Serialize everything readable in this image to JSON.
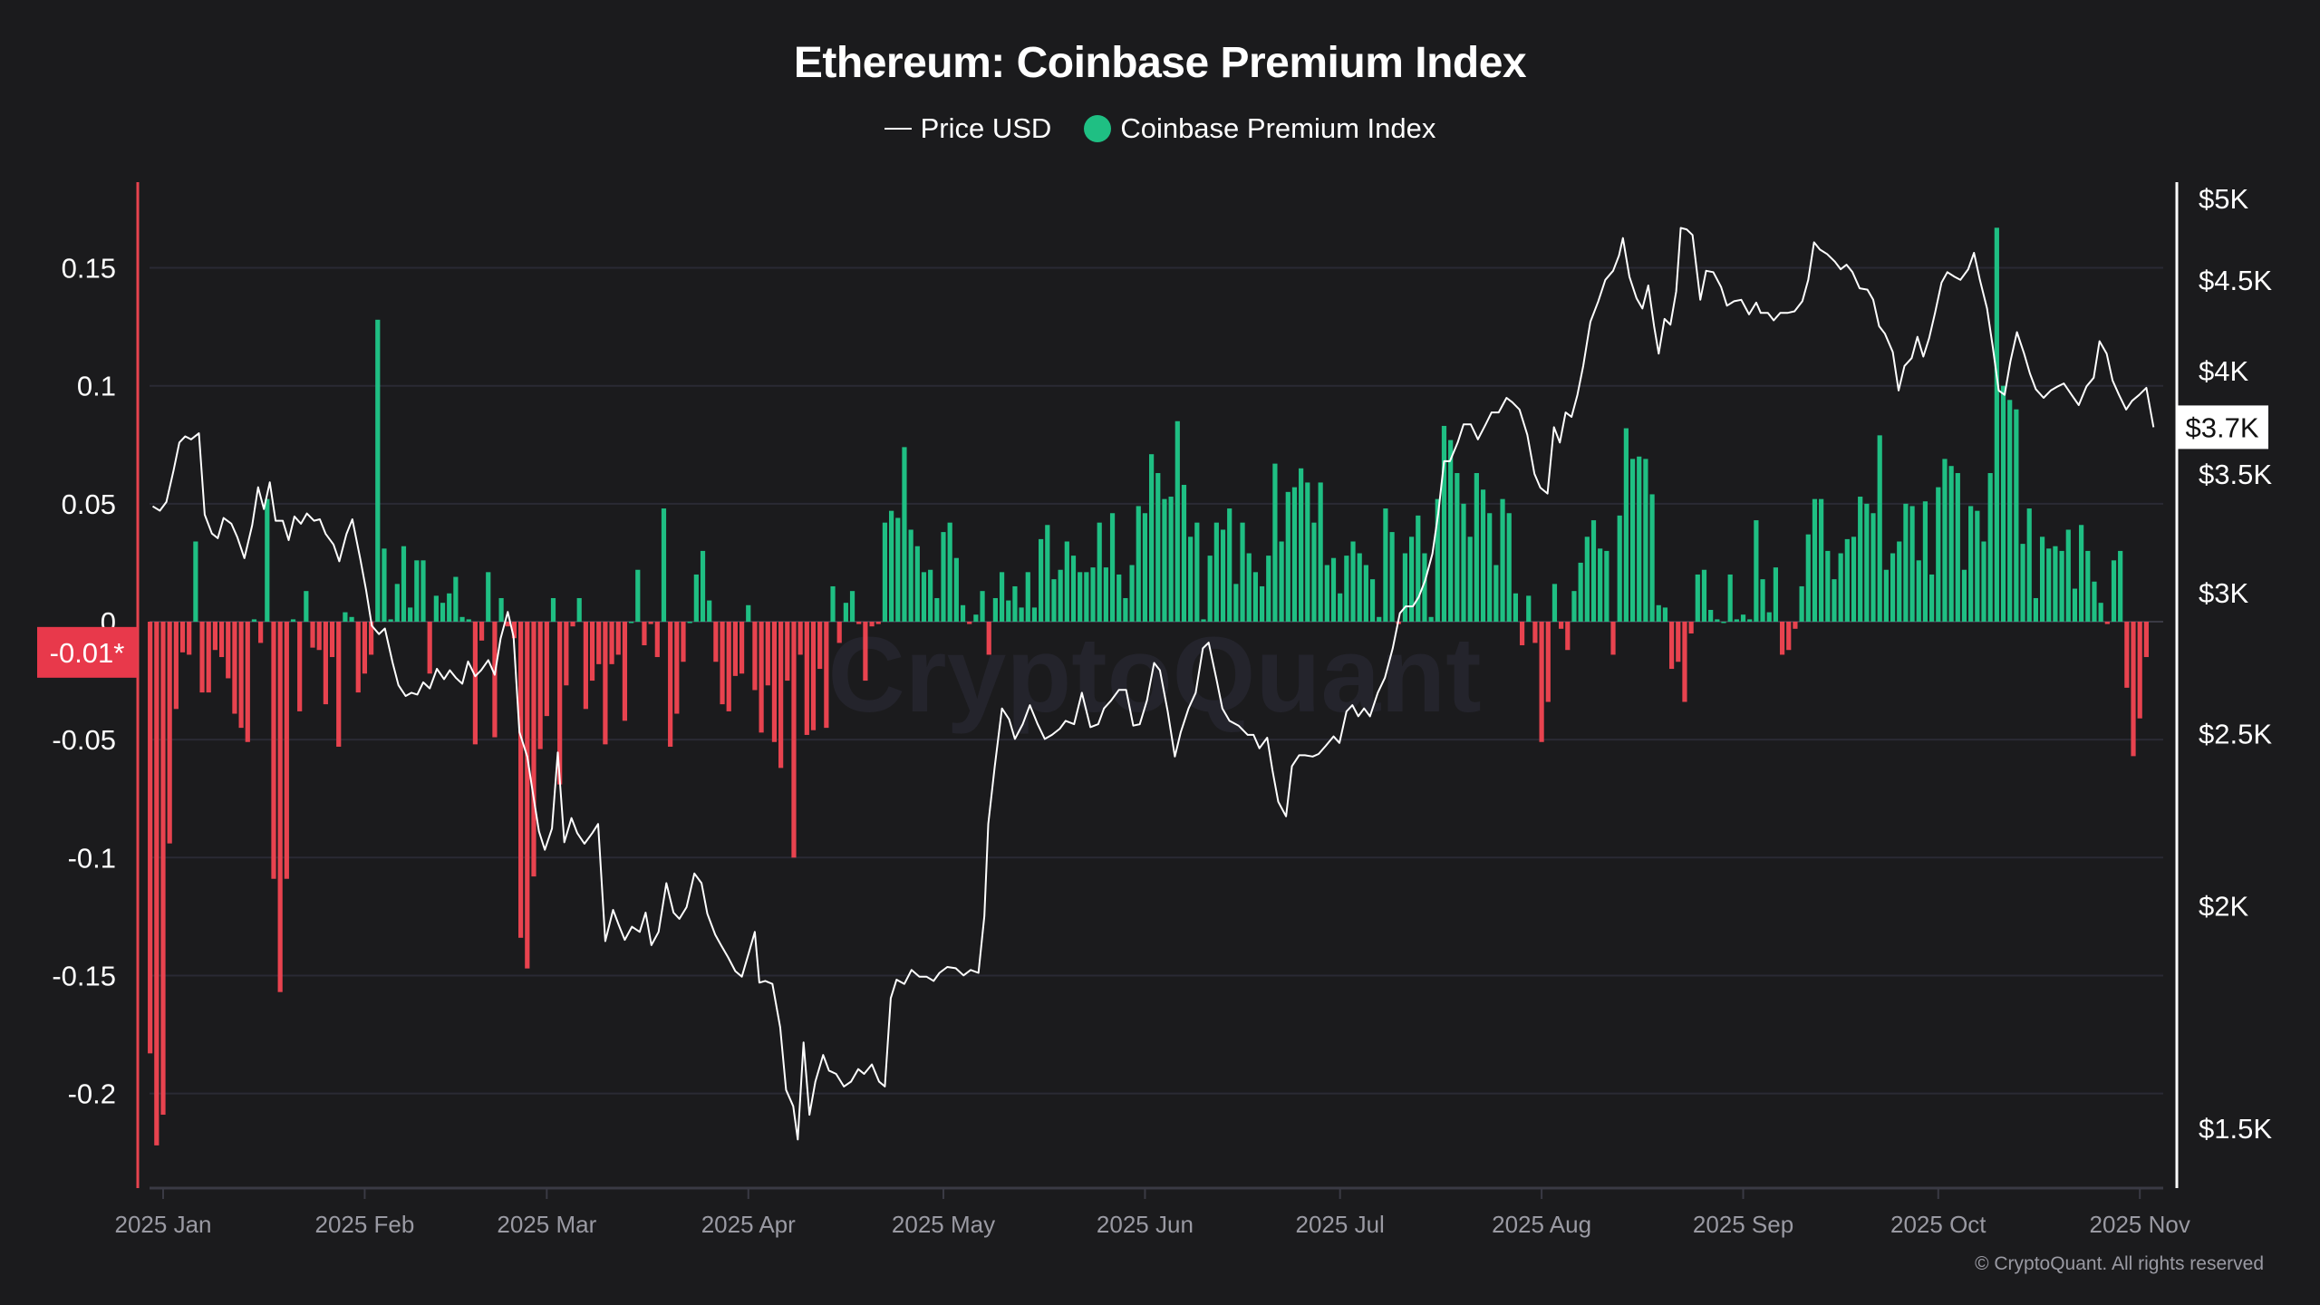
{
  "title": "Ethereum: Coinbase Premium Index",
  "legend": [
    {
      "label": "Price USD",
      "type": "line",
      "color": "#ffffff"
    },
    {
      "label": "Coinbase Premium Index",
      "type": "dot",
      "color": "#1fbf83"
    }
  ],
  "colors": {
    "background": "#1b1b1d",
    "positive": "#1fbf83",
    "negative": "#e8434f",
    "grid": "#2a2a34",
    "left_axis": "#e8434f"
  },
  "watermark": "CryptoQuant",
  "copyright": "© CryptoQuant. All rights reserved",
  "chart_data": {
    "type": "bar+line",
    "title": "Ethereum: Coinbase Premium Index",
    "left_axis": {
      "ticks": [
        0.15,
        0.1,
        0.05,
        0,
        -0.05,
        -0.1,
        -0.15,
        -0.2
      ],
      "tick_labels": [
        "0.15",
        "0.1",
        "0.05",
        "0",
        "-0.05",
        "-0.1",
        "-0.15",
        "-0.2"
      ],
      "range": [
        -0.24,
        0.186
      ]
    },
    "right_axis": {
      "scale": "log",
      "ticks": [
        5000,
        4500,
        4000,
        3500,
        3000,
        2500,
        2000,
        1500
      ],
      "tick_labels": [
        "$5K",
        "$4.5K",
        "$4K",
        "$3.5K",
        "$3K",
        "$2.5K",
        "$2K",
        "$1.5K"
      ]
    },
    "x_axis": {
      "ticks": [
        {
          "label": "2025 Jan",
          "day": 0
        },
        {
          "label": "2025 Feb",
          "day": 31
        },
        {
          "label": "2025 Mar",
          "day": 59
        },
        {
          "label": "2025 Apr",
          "day": 90
        },
        {
          "label": "2025 May",
          "day": 120
        },
        {
          "label": "2025 Jun",
          "day": 151
        },
        {
          "label": "2025 Jul",
          "day": 181
        },
        {
          "label": "2025 Aug",
          "day": 212
        },
        {
          "label": "2025 Sep",
          "day": 243
        },
        {
          "label": "2025 Oct",
          "day": 273
        },
        {
          "label": "2025 Nov",
          "day": 304
        }
      ]
    },
    "last_premium_label": "-0.01*",
    "last_premium_value": -0.013,
    "last_price_label": "$3.7K",
    "last_price_value": 3718,
    "premium_start_day": -2,
    "premium": [
      -0.183,
      -0.222,
      -0.209,
      -0.094,
      -0.037,
      -0.013,
      -0.014,
      0.034,
      -0.03,
      -0.03,
      -0.012,
      -0.015,
      -0.024,
      -0.039,
      -0.045,
      -0.051,
      0.001,
      -0.009,
      0.052,
      -0.109,
      -0.157,
      -0.109,
      0.001,
      -0.038,
      0.013,
      -0.011,
      -0.012,
      -0.035,
      -0.015,
      -0.053,
      0.004,
      0.002,
      -0.03,
      -0.022,
      -0.014,
      0.128,
      0.031,
      0.001,
      0.016,
      0.032,
      0.006,
      0.026,
      0.026,
      -0.022,
      0.011,
      0.008,
      0.012,
      0.019,
      0.002,
      0.001,
      -0.052,
      -0.008,
      0.021,
      -0.049,
      0.01,
      -0.002,
      -0.007,
      -0.134,
      -0.147,
      -0.108,
      -0.054,
      -0.04,
      0.01,
      -0.069,
      -0.027,
      -0.002,
      0.01,
      -0.037,
      -0.025,
      -0.018,
      -0.052,
      -0.018,
      -0.014,
      -0.042,
      0,
      0.022,
      -0.01,
      -0.001,
      -0.015,
      0.048,
      -0.053,
      -0.039,
      -0.017,
      0,
      0.02,
      0.03,
      0.009,
      -0.017,
      -0.035,
      -0.038,
      -0.023,
      -0.022,
      0.007,
      -0.029,
      -0.047,
      -0.027,
      -0.051,
      -0.062,
      -0.025,
      -0.1,
      -0.014,
      -0.048,
      -0.046,
      -0.02,
      -0.045,
      0.015,
      -0.009,
      0.008,
      0.013,
      -0.001,
      -0.025,
      -0.002,
      -0.001,
      0.042,
      0.047,
      0.044,
      0.074,
      0.039,
      0.032,
      0.021,
      0.022,
      0.01,
      0.038,
      0.042,
      0.027,
      0.007,
      -0.001,
      0.003,
      0.013,
      -0.014,
      0.01,
      0.021,
      0.009,
      0.015,
      0.006,
      0.021,
      0.006,
      0.035,
      0.041,
      0.018,
      0.022,
      0.034,
      0.028,
      0.021,
      0.021,
      0.023,
      0.042,
      0.023,
      0.046,
      0.02,
      0.01,
      0.024,
      0.049,
      0.046,
      0.071,
      0.063,
      0.052,
      0.053,
      0.085,
      0.058,
      0.036,
      0.042,
      0.001,
      0.028,
      0.042,
      0.039,
      0.048,
      0.016,
      0.042,
      0.029,
      0.021,
      0.015,
      0.028,
      0.067,
      0.034,
      0.055,
      0.057,
      0.065,
      0.059,
      0.042,
      0.059,
      0.024,
      0.027,
      0.012,
      0.028,
      0.034,
      0.029,
      0.024,
      0.018,
      0.002,
      0.048,
      0.038,
      -0.001,
      0.029,
      0.036,
      0.045,
      0.029,
      0.002,
      0.052,
      0.083,
      0.077,
      0.063,
      0.05,
      0.036,
      0.063,
      0.056,
      0.046,
      0.024,
      0.052,
      0.046,
      0.012,
      -0.01,
      0.011,
      -0.009,
      -0.051,
      -0.034,
      0.016,
      -0.003,
      -0.012,
      0.013,
      0.025,
      0.036,
      0.043,
      0.031,
      0.03,
      -0.014,
      0.045,
      0.082,
      0.069,
      0.07,
      0.069,
      0.054,
      0.007,
      0.006,
      -0.02,
      -0.017,
      -0.034,
      -0.005,
      0.02,
      0.022,
      0.005,
      0.001,
      0,
      0.02,
      0.001,
      0.003,
      0.001,
      0.043,
      0.018,
      0.004,
      0.023,
      -0.014,
      -0.012,
      -0.003,
      0.015,
      0.037,
      0.052,
      0.052,
      0.03,
      0.018,
      0.029,
      0.035,
      0.036,
      0.053,
      0.05,
      0.046,
      0.079,
      0.022,
      0.029,
      0.034,
      0.05,
      0.049,
      0.026,
      0.051,
      0.02,
      0.057,
      0.069,
      0.066,
      0.063,
      0.022,
      0.049,
      0.047,
      0.034,
      0.063,
      0.167,
      0.1,
      0.094,
      0.09,
      0.033,
      0.048,
      0.01,
      0.036,
      0.031,
      0.032,
      0.03,
      0.039,
      0.014,
      0.041,
      0.03,
      0.017,
      0.008,
      -0.001,
      0.026,
      0.03,
      -0.028,
      -0.057,
      -0.041,
      -0.015
    ],
    "price": [
      [
        -1.6,
        3356
      ],
      [
        -0.5,
        3337
      ],
      [
        0.5,
        3375
      ],
      [
        1.6,
        3515
      ],
      [
        2.5,
        3645
      ],
      [
        3.4,
        3674
      ],
      [
        4.3,
        3660
      ],
      [
        5.5,
        3689
      ],
      [
        6.4,
        3320
      ],
      [
        7.5,
        3240
      ],
      [
        8.4,
        3220
      ],
      [
        9.3,
        3306
      ],
      [
        10.5,
        3281
      ],
      [
        11.4,
        3225
      ],
      [
        12.5,
        3138
      ],
      [
        13.7,
        3275
      ],
      [
        14.6,
        3440
      ],
      [
        15.5,
        3344
      ],
      [
        16.4,
        3462
      ],
      [
        17.3,
        3294
      ],
      [
        18.4,
        3294
      ],
      [
        19.3,
        3212
      ],
      [
        20.2,
        3312
      ],
      [
        21.2,
        3281
      ],
      [
        22.1,
        3325
      ],
      [
        23.2,
        3294
      ],
      [
        24.1,
        3300
      ],
      [
        25.0,
        3238
      ],
      [
        26.2,
        3194
      ],
      [
        27.1,
        3125
      ],
      [
        28.2,
        3238
      ],
      [
        29.1,
        3300
      ],
      [
        30.3,
        3138
      ],
      [
        31.2,
        3012
      ],
      [
        32.1,
        2875
      ],
      [
        33.2,
        2844
      ],
      [
        34.1,
        2865
      ],
      [
        35.3,
        2740
      ],
      [
        36.2,
        2662
      ],
      [
        37.3,
        2625
      ],
      [
        38.2,
        2636
      ],
      [
        39.1,
        2630
      ],
      [
        40.0,
        2672
      ],
      [
        41.0,
        2651
      ],
      [
        42.1,
        2719
      ],
      [
        43.2,
        2683
      ],
      [
        44.1,
        2714
      ],
      [
        45.0,
        2688
      ],
      [
        46.0,
        2667
      ],
      [
        46.9,
        2745
      ],
      [
        48.0,
        2693
      ],
      [
        48.9,
        2714
      ],
      [
        50.0,
        2750
      ],
      [
        51.0,
        2698
      ],
      [
        51.9,
        2828
      ],
      [
        53.0,
        2927
      ],
      [
        53.9,
        2834
      ],
      [
        54.8,
        2505
      ],
      [
        56.0,
        2427
      ],
      [
        56.9,
        2310
      ],
      [
        57.8,
        2203
      ],
      [
        58.7,
        2151
      ],
      [
        59.8,
        2211
      ],
      [
        60.7,
        2440
      ],
      [
        61.7,
        2172
      ],
      [
        62.8,
        2241
      ],
      [
        63.7,
        2198
      ],
      [
        64.8,
        2168
      ],
      [
        66.0,
        2198
      ],
      [
        66.9,
        2224
      ],
      [
        68.0,
        1911
      ],
      [
        69.2,
        1990
      ],
      [
        70.1,
        1950
      ],
      [
        71.0,
        1914
      ],
      [
        72.1,
        1947
      ],
      [
        73.3,
        1934
      ],
      [
        74.2,
        1983
      ],
      [
        75.1,
        1901
      ],
      [
        76.2,
        1934
      ],
      [
        77.4,
        2060
      ],
      [
        78.5,
        1983
      ],
      [
        79.4,
        1967
      ],
      [
        80.5,
        1997
      ],
      [
        81.7,
        2086
      ],
      [
        82.8,
        2060
      ],
      [
        83.7,
        1980
      ],
      [
        84.9,
        1927
      ],
      [
        85.8,
        1901
      ],
      [
        86.9,
        1871
      ],
      [
        88.0,
        1838
      ],
      [
        89.0,
        1825
      ],
      [
        90.1,
        1884
      ],
      [
        91.0,
        1934
      ],
      [
        91.7,
        1811
      ],
      [
        92.6,
        1815
      ],
      [
        93.7,
        1808
      ],
      [
        94.9,
        1709
      ],
      [
        95.8,
        1576
      ],
      [
        96.9,
        1543
      ],
      [
        97.6,
        1478
      ],
      [
        98.5,
        1676
      ],
      [
        99.4,
        1526
      ],
      [
        100.3,
        1593
      ],
      [
        101.5,
        1649
      ],
      [
        102.4,
        1616
      ],
      [
        103.5,
        1609
      ],
      [
        104.7,
        1583
      ],
      [
        105.8,
        1593
      ],
      [
        106.9,
        1619
      ],
      [
        107.8,
        1609
      ],
      [
        109.0,
        1629
      ],
      [
        110.1,
        1593
      ],
      [
        111.0,
        1583
      ],
      [
        111.9,
        1775
      ],
      [
        112.8,
        1818
      ],
      [
        114.0,
        1808
      ],
      [
        115.1,
        1841
      ],
      [
        116.3,
        1825
      ],
      [
        117.4,
        1825
      ],
      [
        118.5,
        1815
      ],
      [
        119.4,
        1834
      ],
      [
        120.6,
        1848
      ],
      [
        121.9,
        1845
      ],
      [
        123.1,
        1828
      ],
      [
        124.2,
        1841
      ],
      [
        125.4,
        1834
      ],
      [
        126.3,
        1974
      ],
      [
        126.9,
        2224
      ],
      [
        127.9,
        2397
      ],
      [
        129.0,
        2583
      ],
      [
        130.1,
        2547
      ],
      [
        131.0,
        2483
      ],
      [
        132.2,
        2531
      ],
      [
        133.3,
        2594
      ],
      [
        134.5,
        2531
      ],
      [
        135.6,
        2483
      ],
      [
        136.7,
        2496
      ],
      [
        137.9,
        2516
      ],
      [
        138.8,
        2542
      ],
      [
        140.1,
        2531
      ],
      [
        141.3,
        2636
      ],
      [
        142.6,
        2521
      ],
      [
        143.8,
        2531
      ],
      [
        144.7,
        2583
      ],
      [
        145.8,
        2610
      ],
      [
        147.0,
        2646
      ],
      [
        148.1,
        2646
      ],
      [
        149.2,
        2526
      ],
      [
        150.2,
        2531
      ],
      [
        151.3,
        2610
      ],
      [
        152.4,
        2740
      ],
      [
        153.3,
        2714
      ],
      [
        154.5,
        2573
      ],
      [
        155.6,
        2427
      ],
      [
        156.5,
        2505
      ],
      [
        157.7,
        2583
      ],
      [
        158.8,
        2636
      ],
      [
        159.9,
        2792
      ],
      [
        160.8,
        2813
      ],
      [
        162.0,
        2683
      ],
      [
        162.9,
        2583
      ],
      [
        164.0,
        2542
      ],
      [
        165.4,
        2526
      ],
      [
        166.8,
        2496
      ],
      [
        167.7,
        2496
      ],
      [
        168.6,
        2453
      ],
      [
        169.8,
        2487
      ],
      [
        170.6,
        2384
      ],
      [
        171.5,
        2289
      ],
      [
        172.7,
        2246
      ],
      [
        173.6,
        2397
      ],
      [
        174.7,
        2431
      ],
      [
        175.6,
        2431
      ],
      [
        176.8,
        2427
      ],
      [
        177.7,
        2435
      ],
      [
        178.8,
        2461
      ],
      [
        180.0,
        2491
      ],
      [
        180.9,
        2470
      ],
      [
        182.0,
        2573
      ],
      [
        182.9,
        2594
      ],
      [
        183.8,
        2557
      ],
      [
        184.7,
        2583
      ],
      [
        185.6,
        2557
      ],
      [
        186.8,
        2636
      ],
      [
        187.9,
        2688
      ],
      [
        189.1,
        2792
      ],
      [
        190.2,
        2922
      ],
      [
        191.1,
        2948
      ],
      [
        192.2,
        2948
      ],
      [
        193.1,
        2984
      ],
      [
        194.1,
        3050
      ],
      [
        195.2,
        3156
      ],
      [
        196.1,
        3325
      ],
      [
        197.0,
        3558
      ],
      [
        197.9,
        3558
      ],
      [
        199.1,
        3645
      ],
      [
        200.0,
        3732
      ],
      [
        201.1,
        3732
      ],
      [
        202.2,
        3660
      ],
      [
        203.4,
        3732
      ],
      [
        204.3,
        3790
      ],
      [
        205.4,
        3790
      ],
      [
        206.6,
        3862
      ],
      [
        207.5,
        3840
      ],
      [
        208.6,
        3804
      ],
      [
        209.8,
        3682
      ],
      [
        210.9,
        3500
      ],
      [
        211.8,
        3438
      ],
      [
        212.9,
        3412
      ],
      [
        213.9,
        3718
      ],
      [
        214.8,
        3645
      ],
      [
        215.7,
        3790
      ],
      [
        216.6,
        3768
      ],
      [
        217.5,
        3877
      ],
      [
        218.4,
        4025
      ],
      [
        219.5,
        4262
      ],
      [
        220.7,
        4375
      ],
      [
        221.8,
        4500
      ],
      [
        223.0,
        4553
      ],
      [
        223.9,
        4644
      ],
      [
        224.5,
        4750
      ],
      [
        225.5,
        4518
      ],
      [
        226.6,
        4393
      ],
      [
        227.5,
        4336
      ],
      [
        228.4,
        4467
      ],
      [
        229.3,
        4238
      ],
      [
        230.0,
        4090
      ],
      [
        230.9,
        4278
      ],
      [
        231.8,
        4246
      ],
      [
        232.7,
        4433
      ],
      [
        233.4,
        4813
      ],
      [
        234.3,
        4804
      ],
      [
        235.2,
        4769
      ],
      [
        236.4,
        4385
      ],
      [
        237.3,
        4553
      ],
      [
        238.4,
        4545
      ],
      [
        239.6,
        4459
      ],
      [
        240.5,
        4352
      ],
      [
        241.6,
        4377
      ],
      [
        242.7,
        4385
      ],
      [
        243.9,
        4303
      ],
      [
        245.0,
        4369
      ],
      [
        245.7,
        4311
      ],
      [
        246.8,
        4311
      ],
      [
        247.7,
        4270
      ],
      [
        248.7,
        4311
      ],
      [
        249.8,
        4311
      ],
      [
        250.9,
        4320
      ],
      [
        252.1,
        4377
      ],
      [
        253.0,
        4500
      ],
      [
        253.9,
        4724
      ],
      [
        254.8,
        4680
      ],
      [
        255.9,
        4653
      ],
      [
        257.1,
        4607
      ],
      [
        258.0,
        4562
      ],
      [
        258.9,
        4589
      ],
      [
        259.8,
        4545
      ],
      [
        260.9,
        4451
      ],
      [
        262.1,
        4443
      ],
      [
        263.0,
        4385
      ],
      [
        263.9,
        4238
      ],
      [
        264.8,
        4197
      ],
      [
        266.0,
        4098
      ],
      [
        266.9,
        3899
      ],
      [
        267.8,
        4025
      ],
      [
        268.9,
        4066
      ],
      [
        269.8,
        4180
      ],
      [
        270.7,
        4074
      ],
      [
        271.6,
        4172
      ],
      [
        272.5,
        4311
      ],
      [
        273.5,
        4484
      ],
      [
        274.4,
        4545
      ],
      [
        275.5,
        4518
      ],
      [
        276.4,
        4500
      ],
      [
        277.6,
        4562
      ],
      [
        278.5,
        4660
      ],
      [
        279.4,
        4500
      ],
      [
        280.5,
        4336
      ],
      [
        281.4,
        4123
      ],
      [
        282.3,
        3899
      ],
      [
        283.2,
        3877
      ],
      [
        284.1,
        4049
      ],
      [
        285.1,
        4205
      ],
      [
        286.2,
        4090
      ],
      [
        287.1,
        3986
      ],
      [
        288.0,
        3906
      ],
      [
        289.2,
        3862
      ],
      [
        290.3,
        3899
      ],
      [
        291.4,
        3920
      ],
      [
        292.3,
        3935
      ],
      [
        293.5,
        3877
      ],
      [
        294.6,
        3826
      ],
      [
        295.8,
        3920
      ],
      [
        296.9,
        3964
      ],
      [
        297.8,
        4156
      ],
      [
        298.9,
        4090
      ],
      [
        299.8,
        3950
      ],
      [
        300.8,
        3877
      ],
      [
        301.9,
        3804
      ],
      [
        302.8,
        3847
      ],
      [
        303.9,
        3877
      ],
      [
        305.0,
        3913
      ],
      [
        306.1,
        3718
      ]
    ]
  }
}
